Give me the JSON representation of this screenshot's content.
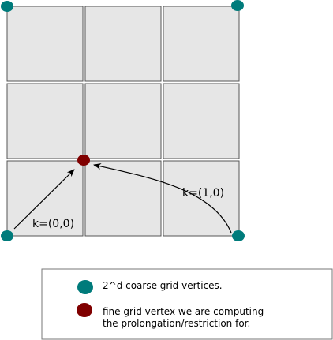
{
  "colors": {
    "cell_fill": "#e6e6e6",
    "cell_stroke": "#555555",
    "coarse_vertex": "#007b7b",
    "fine_vertex": "#800000",
    "arrow": "#000000",
    "legend_border": "#777777"
  },
  "labels": {
    "k00": "k=(0,0)",
    "k10": "k=(1,0)"
  },
  "legend": {
    "coarse_text": "2^d coarse grid vertices.",
    "fine_text_line1": "fine grid vertex we are computing",
    "fine_text_line2": "the prolongation/restriction for."
  }
}
